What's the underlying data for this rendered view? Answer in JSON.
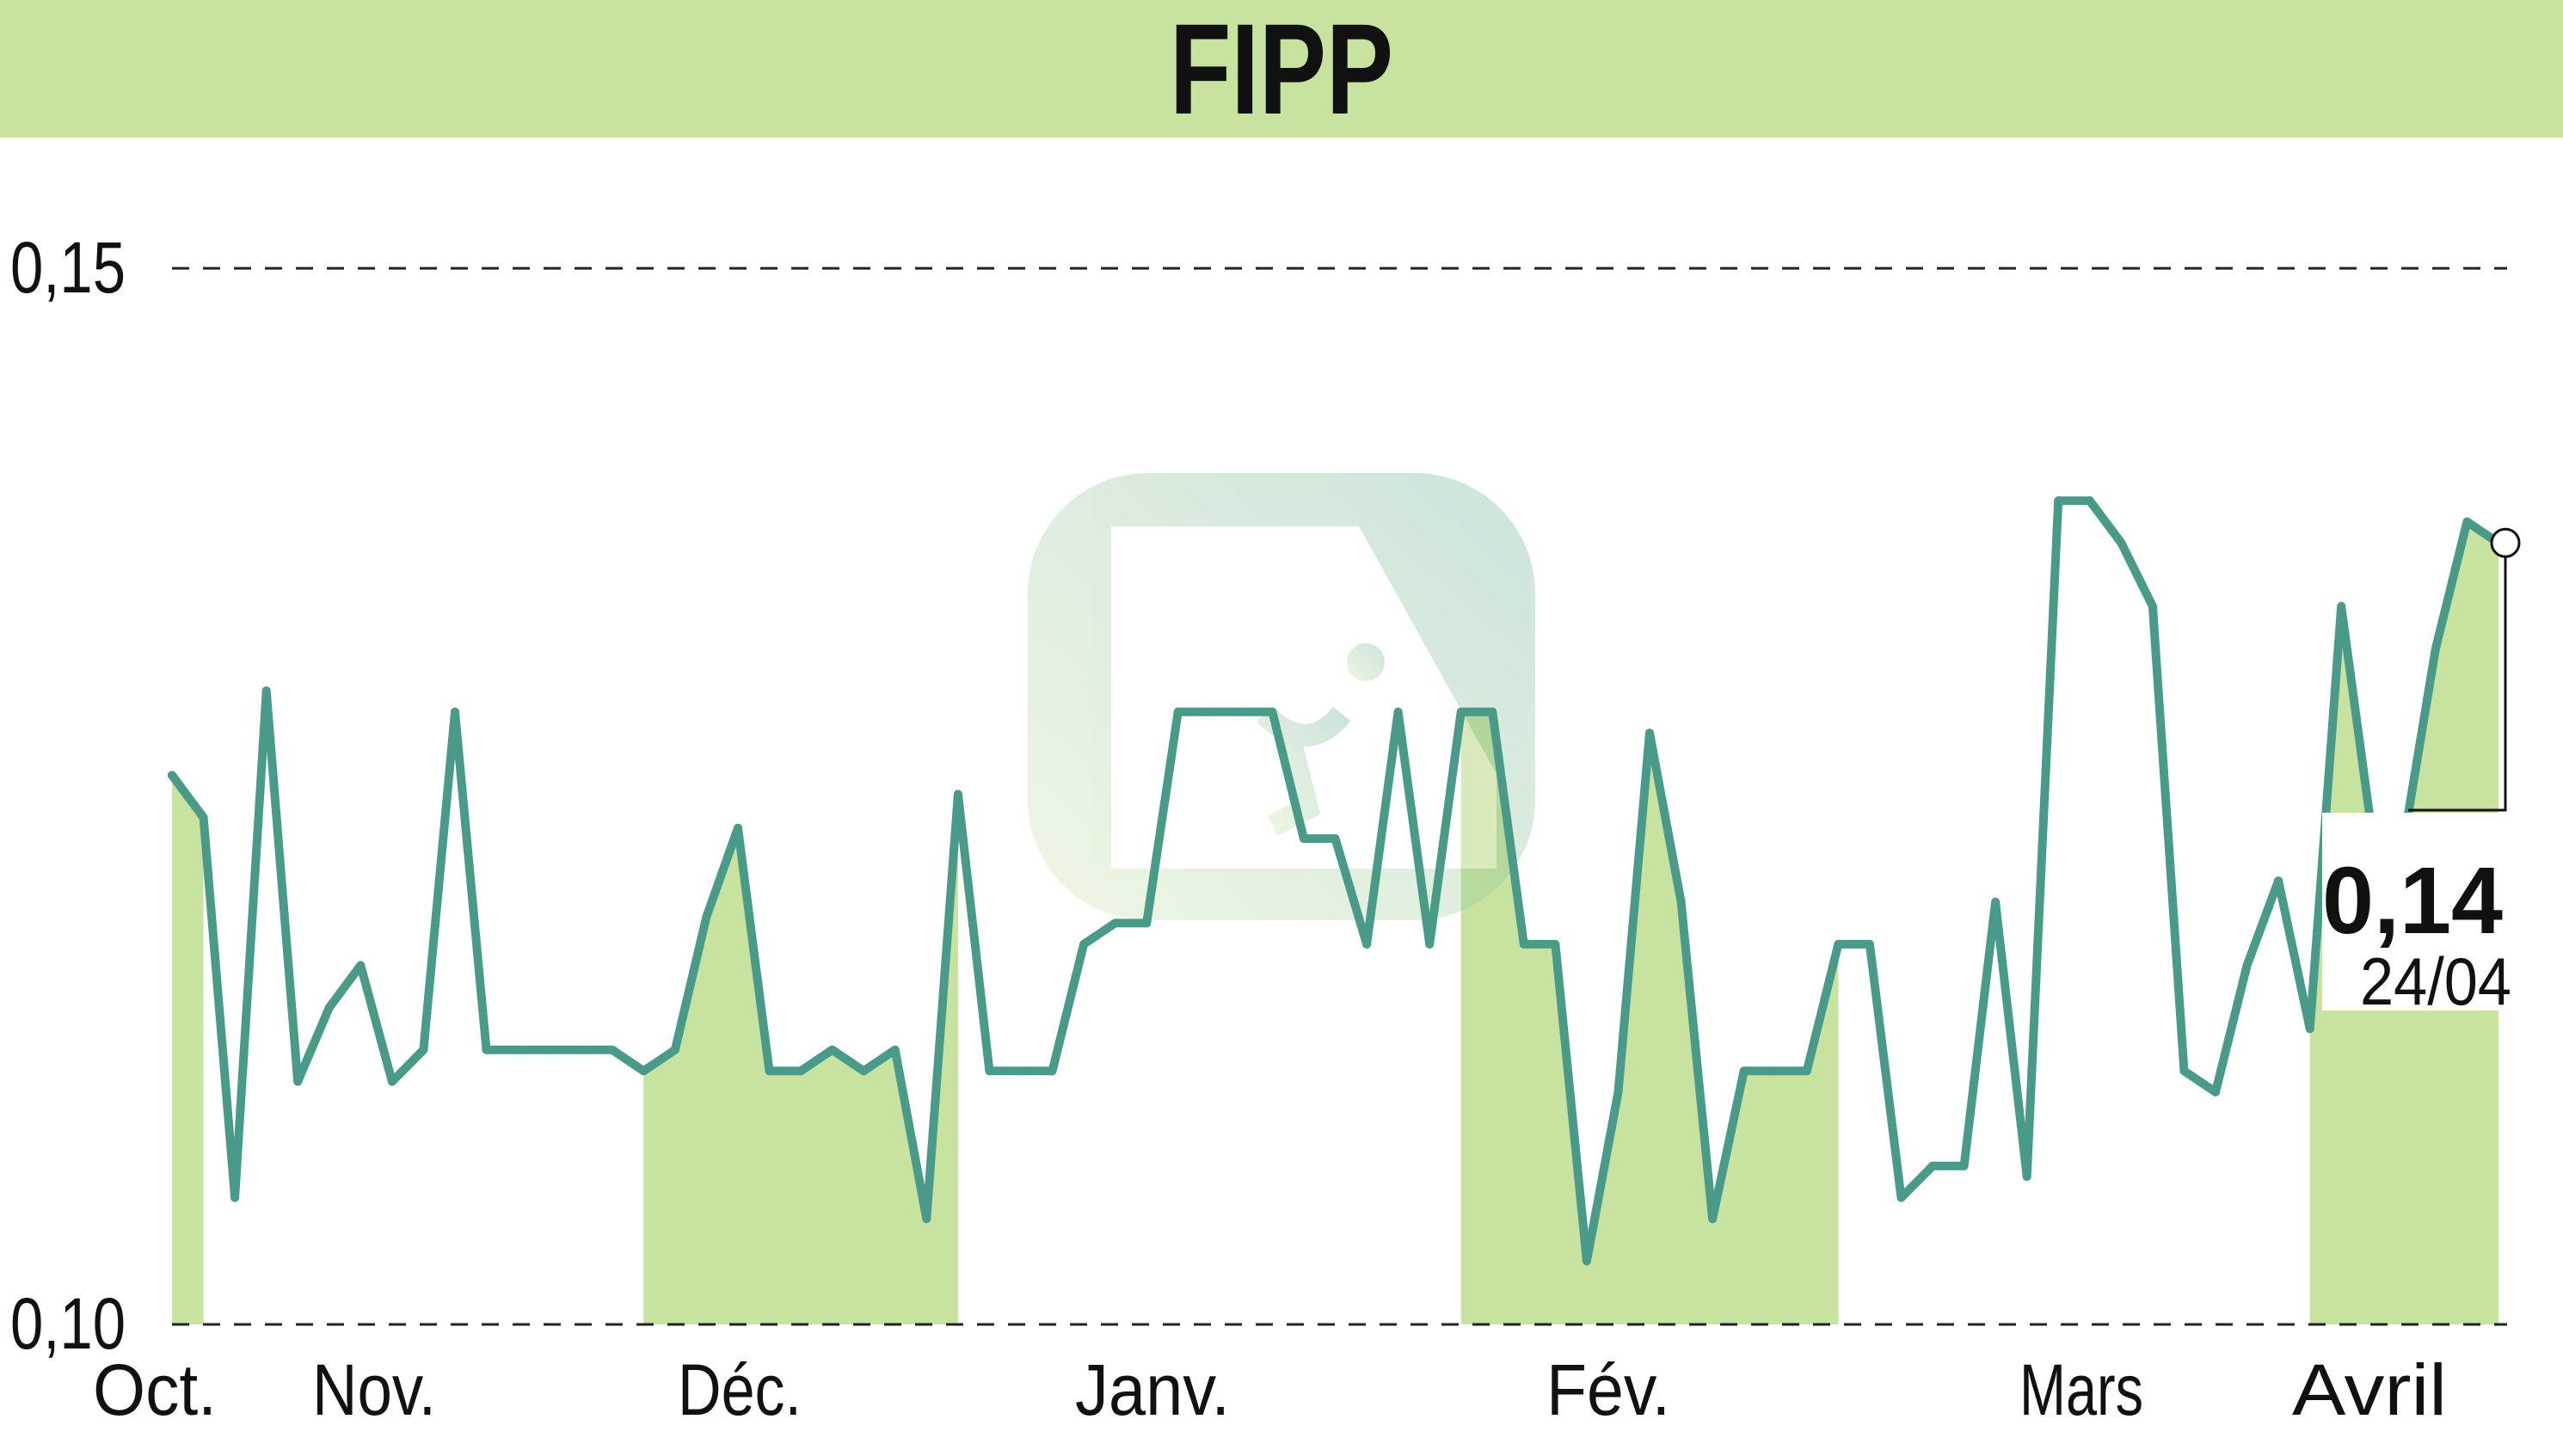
{
  "title": "FIPP",
  "chart_data": {
    "type": "line",
    "title": "FIPP",
    "ylim": [
      0.1,
      0.15
    ],
    "y_ticks": [
      "0,15",
      "0,10"
    ],
    "y_tick_values": [
      0.15,
      0.1
    ],
    "x_ticks": [
      "Oct.",
      "Nov.",
      "Déc.",
      "Janv.",
      "Fév.",
      "Mars",
      "Avril"
    ],
    "grid": "horizontal dashed",
    "last_value_label": "0,14",
    "last_date_label": "24/04",
    "colors": {
      "line": "#4a9a8a",
      "fill": "#c8e2a0",
      "title_bar": "#c8e2a0"
    },
    "values": [
      0.126,
      0.124,
      0.106,
      0.13,
      0.1115,
      0.115,
      0.117,
      0.1115,
      0.113,
      0.129,
      0.113,
      0.113,
      0.113,
      0.113,
      0.113,
      0.112,
      0.113,
      0.1193,
      0.1235,
      0.112,
      0.112,
      0.113,
      0.112,
      0.113,
      0.105,
      0.1251,
      0.112,
      0.112,
      0.112,
      0.118,
      0.119,
      0.119,
      0.129,
      0.129,
      0.129,
      0.129,
      0.123,
      0.123,
      0.118,
      0.129,
      0.118,
      0.129,
      0.129,
      0.118,
      0.118,
      0.103,
      0.111,
      0.128,
      0.12,
      0.105,
      0.112,
      0.112,
      0.112,
      0.118,
      0.118,
      0.106,
      0.1075,
      0.1075,
      0.12,
      0.107,
      0.139,
      0.139,
      0.137,
      0.134,
      0.112,
      0.111,
      0.117,
      0.121,
      0.114,
      0.134,
      0.123,
      0.123,
      0.132,
      0.138,
      0.137
    ],
    "shaded_months": [
      "Oct.",
      "Déc.",
      "Fév.",
      "Avril"
    ]
  }
}
